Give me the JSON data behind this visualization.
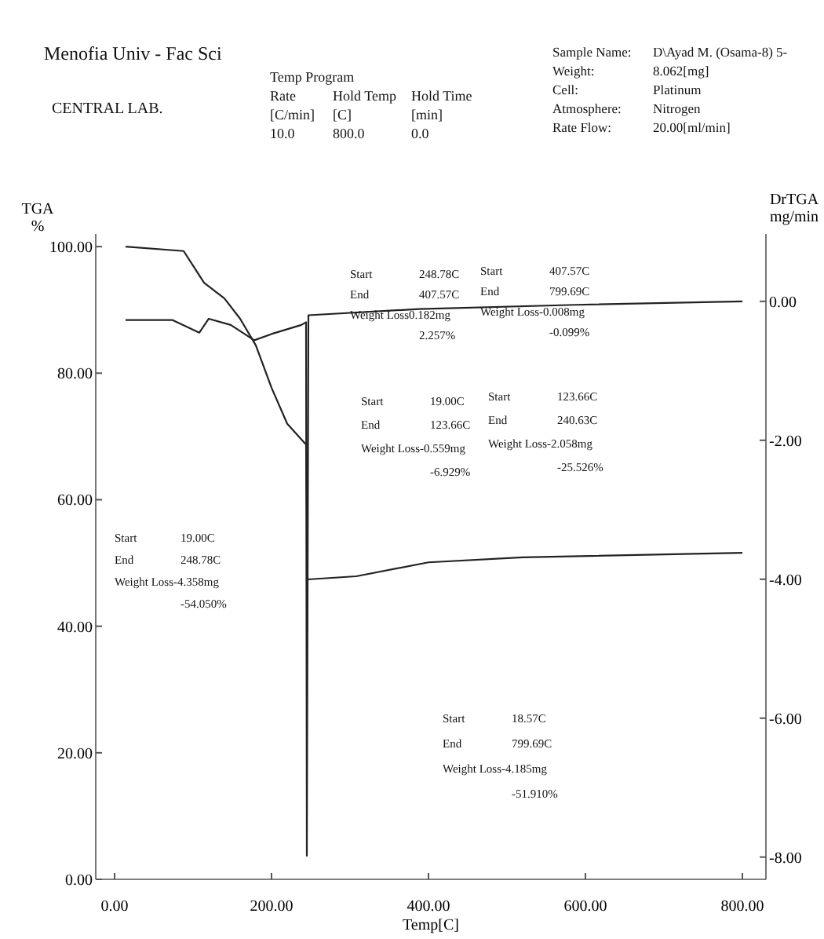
{
  "chart_data": {
    "type": "line",
    "title": "Menofia Univ - Fac Sci",
    "subtitle": "CENTRAL LAB.",
    "xlabel": "Temp[C]",
    "ylabel": "TGA\n%",
    "y2label": "DrTGA\nmg/min",
    "xlim": [
      -24,
      830
    ],
    "xticks": [
      {
        "value": 0,
        "label": "0.00"
      },
      {
        "value": 200,
        "label": "200.00"
      },
      {
        "value": 400,
        "label": "400.00"
      },
      {
        "value": 600,
        "label": "600.00"
      },
      {
        "value": 800,
        "label": "800.00"
      }
    ],
    "ylim": [
      0,
      102
    ],
    "yticks": [
      {
        "value": 0,
        "label": "0.00"
      },
      {
        "value": 20,
        "label": "20.00"
      },
      {
        "value": 40,
        "label": "40.00"
      },
      {
        "value": 60,
        "label": "60.00"
      },
      {
        "value": 80,
        "label": "80.00"
      },
      {
        "value": 100,
        "label": "100.00"
      }
    ],
    "y2lim": [
      -8.32,
      0.97
    ],
    "y2ticks": [
      {
        "value": -8,
        "label": "-8.00"
      },
      {
        "value": -6,
        "label": "-6.00"
      },
      {
        "value": -4,
        "label": "-4.00"
      },
      {
        "value": -2,
        "label": "-2.00"
      },
      {
        "value": 0,
        "label": "0.00"
      }
    ],
    "grid": false,
    "marker": "none",
    "line_style": "solid",
    "series": [
      {
        "color": "#222222",
        "x": [
          14,
          88,
          114,
          140,
          160,
          180,
          200,
          220,
          244,
          246,
          308,
          400,
          520,
          800
        ],
        "values": [
          100,
          99.3,
          94.3,
          91.8,
          88.6,
          84.4,
          77.7,
          72,
          68.7,
          47.4,
          47.9,
          50.1,
          50.9,
          51.6
        ]
      },
      {
        "color": "#222222",
        "axis": "y2",
        "x": [
          14,
          74,
          108,
          120,
          148,
          178,
          200,
          238,
          244,
          245,
          247,
          388,
          588,
          800
        ],
        "values": [
          -0.27,
          -0.27,
          -0.45,
          -0.25,
          -0.34,
          -0.56,
          -0.47,
          -0.34,
          -0.3,
          -7.98,
          -0.2,
          -0.11,
          -0.05,
          0
        ]
      }
    ],
    "annotations": [
      "Temp Program\nRate\tHold Temp\tHold Time\n[C/min]\t[C]\t[min]\n10.0\t800.0\t0.0",
      "Sample Name:\tD\\Ayad M. (Osama-8) 5-\nWeight:\t8.062[mg]\nCell:\tPlatinum\nAtmosphere:\tNitrogen\nRate Flow:\t20.00[ml/min]",
      "Start\t248.78C\nEnd\t407.57C\nWeight Loss0.182mg\n\t2.257%",
      "Start\t407.57C\nEnd\t799.69C\nWeight Loss-0.008mg\n\t-0.099%",
      "Start\t19.00C\nEnd\t123.66C\nWeight Loss-0.559mg\n\t-6.929%",
      "Start\t123.66C\nEnd\t240.63C\nWeight Loss-2.058mg\n\t-25.526%",
      "Start\t19.00C\nEnd\t248.78C\nWeight Loss-4.358mg\n\t-54.050%",
      "Start\t18.57C\nEnd\t799.69C\nWeight Loss-4.185mg\n\t-51.910%"
    ]
  }
}
